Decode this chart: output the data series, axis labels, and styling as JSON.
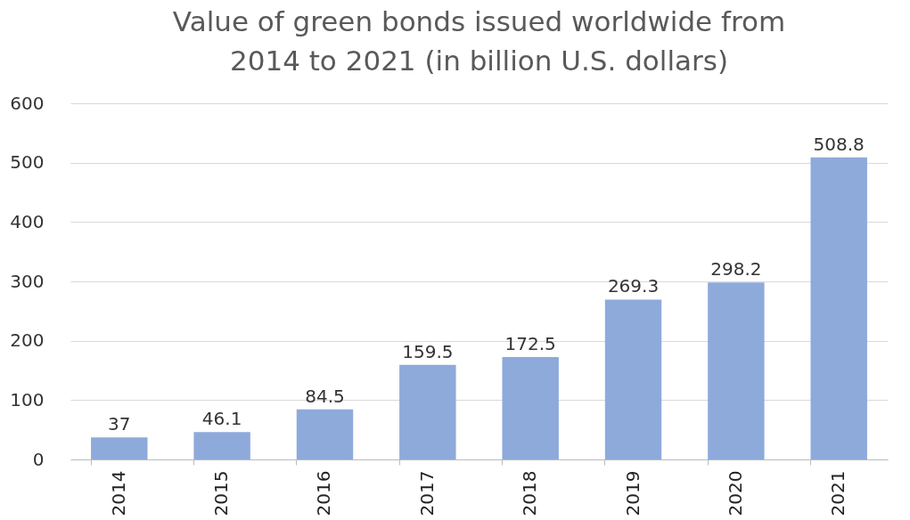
{
  "chart_data": {
    "type": "bar",
    "title": "Value of green bonds issued worldwide from 2014 to 2021 (in billion U.S. dollars)",
    "categories": [
      "2014",
      "2015",
      "2016",
      "2017",
      "2018",
      "2019",
      "2020",
      "2021"
    ],
    "values": [
      37,
      46.1,
      84.5,
      159.5,
      172.5,
      269.3,
      298.2,
      508.8
    ],
    "color": "#8eaadb",
    "ylim": [
      0,
      600
    ],
    "yticks": [
      0,
      100,
      200,
      300,
      400,
      500,
      600
    ],
    "grid": "y",
    "data_labels": true
  }
}
